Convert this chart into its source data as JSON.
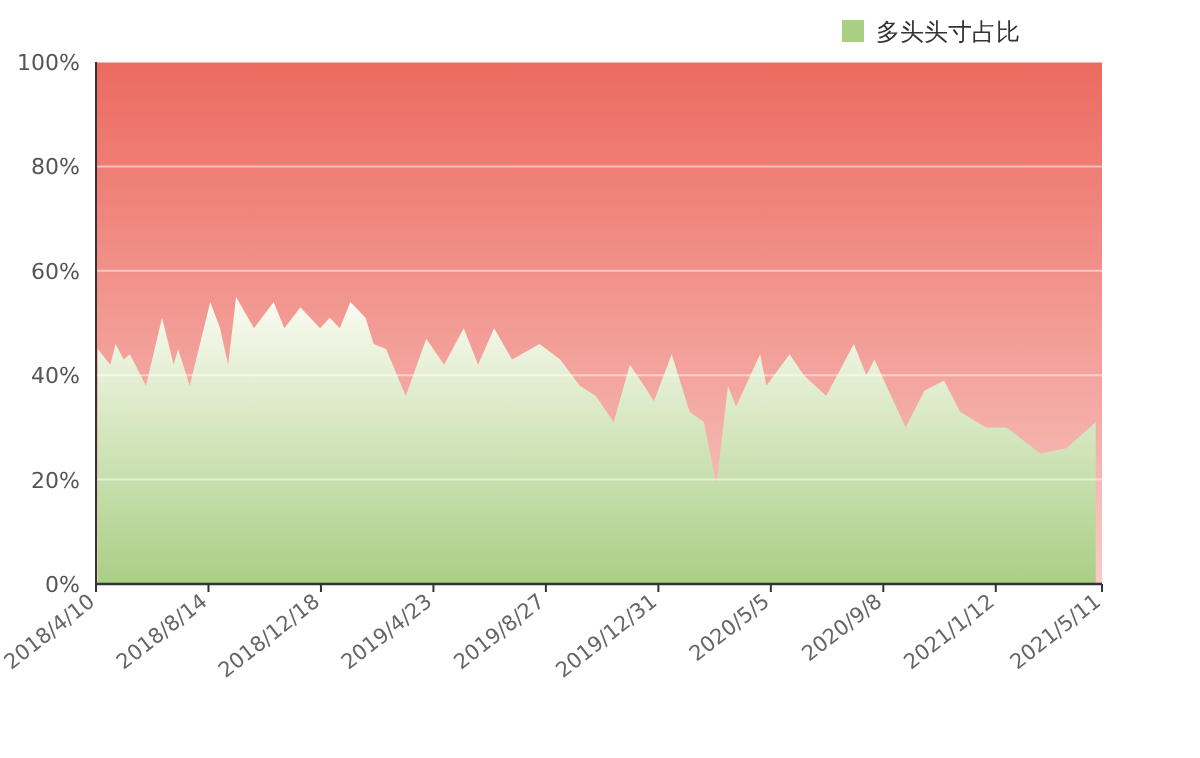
{
  "chart_data": {
    "type": "area",
    "x": [
      "2018-04-12",
      "2018-04-26",
      "2018-05-02",
      "2018-05-11",
      "2018-05-18",
      "2018-06-05",
      "2018-06-23",
      "2018-07-06",
      "2018-07-11",
      "2018-07-24",
      "2018-08-16",
      "2018-08-27",
      "2018-09-05",
      "2018-09-14",
      "2018-10-04",
      "2018-10-26",
      "2018-11-07",
      "2018-11-25",
      "2018-12-17",
      "2018-12-28",
      "2019-01-08",
      "2019-01-20",
      "2019-02-06",
      "2019-02-15",
      "2019-03-01",
      "2019-03-23",
      "2019-04-15",
      "2019-05-05",
      "2019-05-27",
      "2019-06-12",
      "2019-06-30",
      "2019-07-20",
      "2019-08-20",
      "2019-09-12",
      "2019-10-04",
      "2019-10-22",
      "2019-11-11",
      "2019-11-29",
      "2019-12-15",
      "2019-12-26",
      "2020-01-15",
      "2020-02-04",
      "2020-02-20",
      "2020-03-05",
      "2020-03-18",
      "2020-03-27",
      "2020-04-23",
      "2020-04-30",
      "2020-05-26",
      "2020-06-11",
      "2020-07-06",
      "2020-08-06",
      "2020-08-20",
      "2020-08-29",
      "2020-10-03",
      "2020-10-24",
      "2020-11-15",
      "2020-12-03",
      "2021-01-01",
      "2021-01-24",
      "2021-03-03",
      "2021-04-01",
      "2021-05-04"
    ],
    "series": [
      {
        "name": "多头头寸占比",
        "color": "#a9cf85",
        "values": [
          45,
          42,
          46,
          43,
          44,
          38,
          51,
          42,
          45,
          38,
          54,
          49,
          42,
          55,
          49,
          54,
          49,
          53,
          49,
          51,
          49,
          54,
          51,
          46,
          45,
          36,
          47,
          42,
          49,
          42,
          49,
          43,
          46,
          43,
          38,
          36,
          31,
          42,
          38,
          35,
          44,
          33,
          31,
          19,
          38,
          34,
          44,
          38,
          44,
          40,
          36,
          46,
          40,
          43,
          30,
          37,
          39,
          33,
          30,
          30,
          25,
          26,
          31
        ]
      }
    ],
    "xlim": [
      "2018-04-10",
      "2021-05-11"
    ],
    "xticks": [
      {
        "value": "2018-04-10",
        "label": "2018/4/10"
      },
      {
        "value": "2018-08-14",
        "label": "2018/8/14"
      },
      {
        "value": "2018-12-18",
        "label": "2018/12/18"
      },
      {
        "value": "2019-04-23",
        "label": "2019/4/23"
      },
      {
        "value": "2019-08-27",
        "label": "2019/8/27"
      },
      {
        "value": "2019-12-31",
        "label": "2019/12/31"
      },
      {
        "value": "2020-05-05",
        "label": "2020/5/5"
      },
      {
        "value": "2020-09-08",
        "label": "2020/9/8"
      },
      {
        "value": "2021-01-12",
        "label": "2021/1/12"
      },
      {
        "value": "2021-05-11",
        "label": "2021/5/11"
      }
    ],
    "ylim": [
      0,
      100
    ],
    "yticks": [
      {
        "value": 0,
        "label": "0%"
      },
      {
        "value": 20,
        "label": "20%"
      },
      {
        "value": 40,
        "label": "40%"
      },
      {
        "value": 60,
        "label": "60%"
      },
      {
        "value": 80,
        "label": "80%"
      },
      {
        "value": 100,
        "label": "100%"
      }
    ],
    "bands": [
      {
        "axis": "y",
        "from": 0,
        "to": 100,
        "color": "#ec6a60"
      }
    ],
    "grid": "y",
    "legend": "top right"
  }
}
